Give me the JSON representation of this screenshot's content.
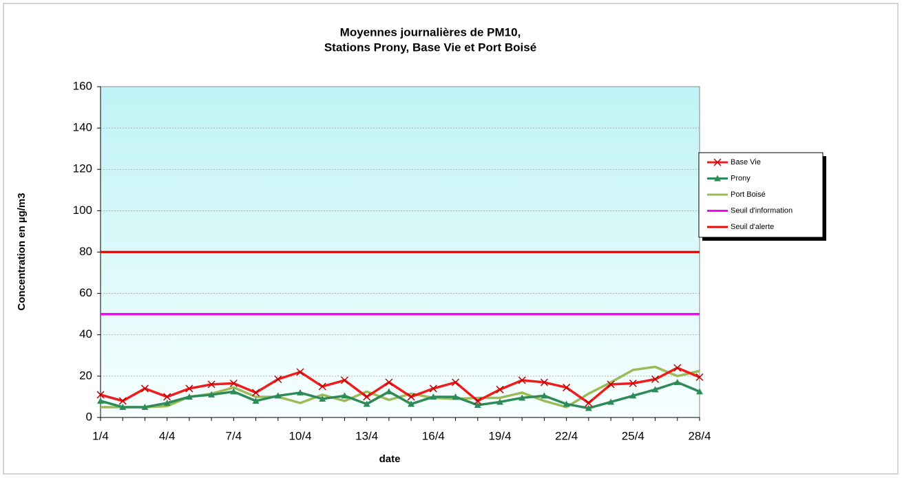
{
  "chart_data": {
    "type": "line",
    "title": [
      "Moyennes journalières de PM10,",
      "Stations Prony, Base Vie et Port Boisé"
    ],
    "x_label": "date",
    "y_label": "Concentration en µg/m3",
    "categories": [
      "1/4",
      null,
      null,
      "4/4",
      null,
      null,
      "7/4",
      null,
      null,
      "10/4",
      null,
      null,
      "13/4",
      null,
      null,
      "16/4",
      null,
      null,
      "19/4",
      null,
      null,
      "22/4",
      null,
      null,
      "25/4",
      null,
      null,
      "28/4"
    ],
    "series": [
      {
        "name": "Base Vie",
        "color": "#ee1c1c",
        "marker": "x",
        "values": [
          11,
          8,
          14,
          10,
          14,
          16,
          16.5,
          12,
          18.5,
          22,
          15,
          18,
          10,
          17,
          10,
          14,
          17,
          8,
          13.5,
          18,
          17,
          14.5,
          7,
          16,
          16.5,
          18.5,
          24,
          19.5
        ]
      },
      {
        "name": "Prony",
        "color": "#2e8b57",
        "marker": "triangle",
        "values": [
          8,
          5,
          5,
          7,
          10,
          11,
          12.5,
          8,
          10.5,
          12,
          9,
          10.5,
          6.5,
          12.5,
          6.5,
          10,
          10,
          6,
          7.5,
          9.5,
          10.5,
          6.5,
          4.5,
          7.5,
          10.5,
          13.5,
          17,
          12.5
        ]
      },
      {
        "name": "Port Boisé",
        "color": "#9bbb59",
        "marker": "none",
        "values": [
          5,
          5,
          5,
          5.5,
          10,
          11.5,
          14.5,
          10,
          10,
          7,
          11,
          8,
          12.5,
          8.5,
          11.5,
          9.5,
          9,
          9.5,
          9.5,
          12,
          8,
          5,
          11.5,
          17,
          23,
          24.5,
          20,
          22.5
        ]
      },
      {
        "name": "Seuil d'information",
        "color": "#ff00ff",
        "marker": "none",
        "values": [
          50,
          50,
          50,
          50,
          50,
          50,
          50,
          50,
          50,
          50,
          50,
          50,
          50,
          50,
          50,
          50,
          50,
          50,
          50,
          50,
          50,
          50,
          50,
          50,
          50,
          50,
          50,
          50
        ]
      },
      {
        "name": "Seuil d'alerte",
        "color": "#ff0000",
        "marker": "none",
        "values": [
          80,
          80,
          80,
          80,
          80,
          80,
          80,
          80,
          80,
          80,
          80,
          80,
          80,
          80,
          80,
          80,
          80,
          80,
          80,
          80,
          80,
          80,
          80,
          80,
          80,
          80,
          80,
          80
        ]
      }
    ],
    "ylim": [
      0,
      160
    ],
    "yticks": [
      0,
      20,
      40,
      60,
      80,
      100,
      120,
      140,
      160
    ],
    "grid": true,
    "legend": "right"
  }
}
